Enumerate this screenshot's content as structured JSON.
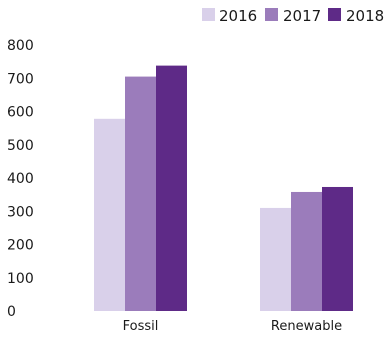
{
  "chart_data": {
    "type": "bar",
    "categories": [
      "Fossil",
      "Renewable"
    ],
    "series": [
      {
        "name": "2016",
        "values": [
          578,
          310
        ],
        "color": "#D9D0EA"
      },
      {
        "name": "2017",
        "values": [
          705,
          358
        ],
        "color": "#9B7CBB"
      },
      {
        "name": "2018",
        "values": [
          738,
          373
        ],
        "color": "#5E2A87"
      }
    ],
    "yticks": [
      0,
      100,
      200,
      300,
      400,
      500,
      600,
      700,
      800
    ],
    "ylim": [
      0,
      800
    ],
    "title": "",
    "xlabel": "",
    "ylabel": "",
    "grid": false,
    "legend_position": "top-right"
  }
}
